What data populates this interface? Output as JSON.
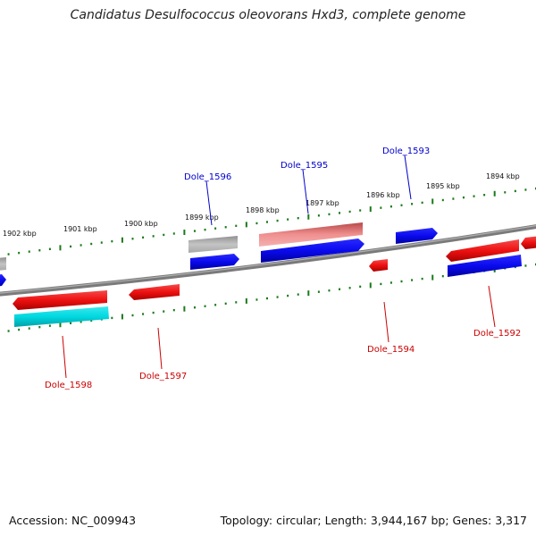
{
  "title": "Candidatus Desulfococcus oleovorans Hxd3, complete genome",
  "accession": "Accession: NC_009943",
  "topology": "Topology: circular; Length: 3,944,167 bp; Genes: 3,317",
  "scale_labels": [
    "1902 kbp",
    "1901 kbp",
    "1900 kbp",
    "1899 kbp",
    "1898 kbp",
    "1897 kbp",
    "1896 kbp",
    "1895 kbp",
    "1894 kbp"
  ],
  "gene_labels": [
    {
      "name": "Dole_1596",
      "strand": "forward"
    },
    {
      "name": "Dole_1595",
      "strand": "forward"
    },
    {
      "name": "Dole_1593",
      "strand": "forward"
    },
    {
      "name": "Dole_1598",
      "strand": "reverse"
    },
    {
      "name": "Dole_1597",
      "strand": "reverse"
    },
    {
      "name": "Dole_1594",
      "strand": "reverse"
    },
    {
      "name": "Dole_1592",
      "strand": "reverse"
    }
  ],
  "colors": {
    "forward_label": "#0000cc",
    "reverse_label": "#cc0000",
    "tick": "#1a7a1a",
    "backbone": "#7a7a7a",
    "red_feature": "#ee1111",
    "blue_feature": "#0a0aee",
    "cyan_feature": "#00d8e0",
    "grey_feature": "#a8a8a8",
    "pink_feature": "#e98383"
  }
}
